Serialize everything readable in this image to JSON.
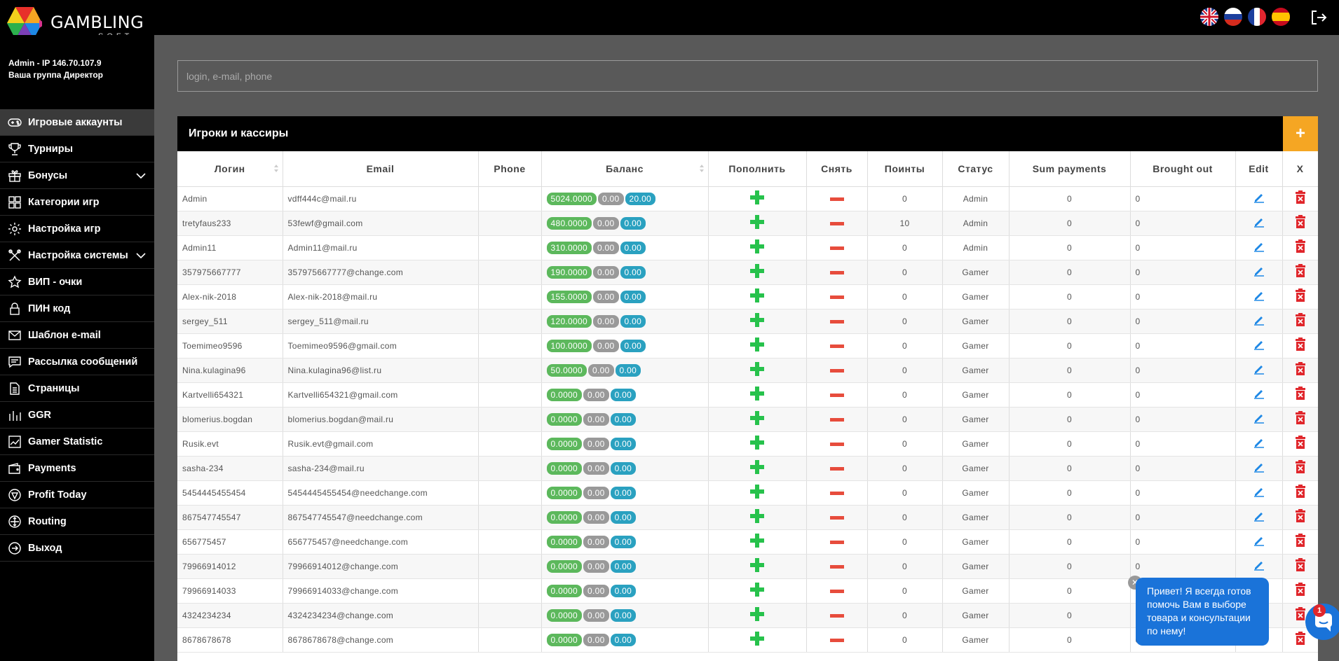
{
  "brand": {
    "name": "GAMBLING",
    "sub": "SOFT"
  },
  "header": {
    "flags": [
      "flag-uk-icon",
      "flag-ru-icon",
      "flag-fr-icon",
      "flag-es-icon"
    ],
    "logout_icon": "logout-icon"
  },
  "user": {
    "line1": "Admin - IP 146.70.107.9",
    "line2": "Ваша группа Директор"
  },
  "sidebar": {
    "items": [
      {
        "label": "Игровые аккаунты",
        "icon": "gamepad-icon",
        "active": true
      },
      {
        "label": "Турниры",
        "icon": "trophy-icon"
      },
      {
        "label": "Бонусы",
        "icon": "gift-icon",
        "caret": true
      },
      {
        "label": "Категории игр",
        "icon": "grid-icon"
      },
      {
        "label": "Настройка игр",
        "icon": "gear-icon"
      },
      {
        "label": "Настройка системы",
        "icon": "tools-icon",
        "caret": true
      },
      {
        "label": "ВИП - очки",
        "icon": "star-icon"
      },
      {
        "label": "ПИН код",
        "icon": "lock-icon"
      },
      {
        "label": "Шаблон e-mail",
        "icon": "envelope-icon"
      },
      {
        "label": "Рассылка сообщений",
        "icon": "message-icon"
      },
      {
        "label": "Страницы",
        "icon": "document-icon"
      },
      {
        "label": "GGR",
        "icon": "chart-icon"
      },
      {
        "label": "Gamer Statistic",
        "icon": "stats-icon"
      },
      {
        "label": "Payments",
        "icon": "wallet-icon"
      },
      {
        "label": "Profit Today",
        "icon": "profit-icon"
      },
      {
        "label": "Routing",
        "icon": "routing-icon"
      },
      {
        "label": "Выход",
        "icon": "exit-icon"
      }
    ]
  },
  "search": {
    "placeholder": "login, e-mail, phone",
    "value": ""
  },
  "panel": {
    "title": "Игроки и кассиры",
    "add_label": "+"
  },
  "table": {
    "headers": [
      "Логин",
      "Email",
      "Phone",
      "Баланс",
      "Пополнить",
      "Снять",
      "Поинты",
      "Статус",
      "Sum payments",
      "Brought out",
      "Edit",
      "X"
    ],
    "rows": [
      {
        "login": "Admin",
        "email": "vdff444c@mail.ru",
        "phone": "",
        "bal": "5024.0000",
        "b2": "0.00",
        "b3": "20.00",
        "points": "0",
        "status": "Admin",
        "sum": "0",
        "out": "0"
      },
      {
        "login": "tretyfaus233",
        "email": "53fewf@gmail.com",
        "phone": "",
        "bal": "480.0000",
        "b2": "0.00",
        "b3": "0.00",
        "points": "10",
        "status": "Admin",
        "sum": "0",
        "out": "0"
      },
      {
        "login": "Admin11",
        "email": "Admin11@mail.ru",
        "phone": "",
        "bal": "310.0000",
        "b2": "0.00",
        "b3": "0.00",
        "points": "0",
        "status": "Admin",
        "sum": "0",
        "out": "0"
      },
      {
        "login": "357975667777",
        "email": "357975667777@change.com",
        "phone": "",
        "bal": "190.0000",
        "b2": "0.00",
        "b3": "0.00",
        "points": "0",
        "status": "Gamer",
        "sum": "0",
        "out": "0"
      },
      {
        "login": "Alex-nik-2018",
        "email": "Alex-nik-2018@mail.ru",
        "phone": "",
        "bal": "155.0000",
        "b2": "0.00",
        "b3": "0.00",
        "points": "0",
        "status": "Gamer",
        "sum": "0",
        "out": "0"
      },
      {
        "login": "sergey_511",
        "email": "sergey_511@mail.ru",
        "phone": "",
        "bal": "120.0000",
        "b2": "0.00",
        "b3": "0.00",
        "points": "0",
        "status": "Gamer",
        "sum": "0",
        "out": "0"
      },
      {
        "login": "Toemimeo9596",
        "email": "Toemimeo9596@gmail.com",
        "phone": "",
        "bal": "100.0000",
        "b2": "0.00",
        "b3": "0.00",
        "points": "0",
        "status": "Gamer",
        "sum": "0",
        "out": "0"
      },
      {
        "login": "Nina.kulagina96",
        "email": "Nina.kulagina96@list.ru",
        "phone": "",
        "bal": "50.0000",
        "b2": "0.00",
        "b3": "0.00",
        "points": "0",
        "status": "Gamer",
        "sum": "0",
        "out": "0"
      },
      {
        "login": "Kartvelli654321",
        "email": "Kartvelli654321@gmail.com",
        "phone": "",
        "bal": "0.0000",
        "b2": "0.00",
        "b3": "0.00",
        "points": "0",
        "status": "Gamer",
        "sum": "0",
        "out": "0"
      },
      {
        "login": "blomerius.bogdan",
        "email": "blomerius.bogdan@mail.ru",
        "phone": "",
        "bal": "0.0000",
        "b2": "0.00",
        "b3": "0.00",
        "points": "0",
        "status": "Gamer",
        "sum": "0",
        "out": "0"
      },
      {
        "login": "Rusik.evt",
        "email": "Rusik.evt@gmail.com",
        "phone": "",
        "bal": "0.0000",
        "b2": "0.00",
        "b3": "0.00",
        "points": "0",
        "status": "Gamer",
        "sum": "0",
        "out": "0"
      },
      {
        "login": "sasha-234",
        "email": "sasha-234@mail.ru",
        "phone": "",
        "bal": "0.0000",
        "b2": "0.00",
        "b3": "0.00",
        "points": "0",
        "status": "Gamer",
        "sum": "0",
        "out": "0"
      },
      {
        "login": "5454445455454",
        "email": "5454445455454@needchange.com",
        "phone": "",
        "bal": "0.0000",
        "b2": "0.00",
        "b3": "0.00",
        "points": "0",
        "status": "Gamer",
        "sum": "0",
        "out": "0"
      },
      {
        "login": "867547745547",
        "email": "867547745547@needchange.com",
        "phone": "",
        "bal": "0.0000",
        "b2": "0.00",
        "b3": "0.00",
        "points": "0",
        "status": "Gamer",
        "sum": "0",
        "out": "0"
      },
      {
        "login": "656775457",
        "email": "656775457@needchange.com",
        "phone": "",
        "bal": "0.0000",
        "b2": "0.00",
        "b3": "0.00",
        "points": "0",
        "status": "Gamer",
        "sum": "0",
        "out": "0"
      },
      {
        "login": "79966914012",
        "email": "79966914012@change.com",
        "phone": "",
        "bal": "0.0000",
        "b2": "0.00",
        "b3": "0.00",
        "points": "0",
        "status": "Gamer",
        "sum": "0",
        "out": "0"
      },
      {
        "login": "79966914033",
        "email": "79966914033@change.com",
        "phone": "",
        "bal": "0.0000",
        "b2": "0.00",
        "b3": "0.00",
        "points": "0",
        "status": "Gamer",
        "sum": "0",
        "out": "0"
      },
      {
        "login": "4324234234",
        "email": "4324234234@change.com",
        "phone": "",
        "bal": "0.0000",
        "b2": "0.00",
        "b3": "0.00",
        "points": "0",
        "status": "Gamer",
        "sum": "0",
        "out": "0"
      },
      {
        "login": "8678678678",
        "email": "8678678678@change.com",
        "phone": "",
        "bal": "0.0000",
        "b2": "0.00",
        "b3": "0.00",
        "points": "0",
        "status": "Gamer",
        "sum": "0",
        "out": "0"
      }
    ]
  },
  "chat": {
    "message": "Привет! Я всегда готов помочь Вам в выборе товара и консультации по нему!",
    "close": "✕",
    "badge": "1"
  },
  "colors": {
    "accent": "#f5a623",
    "green": "#5cb85c",
    "blue": "#2aa1c0",
    "plus": "#27c24c",
    "minus": "#e74c3c",
    "chat": "#1a73d9"
  }
}
